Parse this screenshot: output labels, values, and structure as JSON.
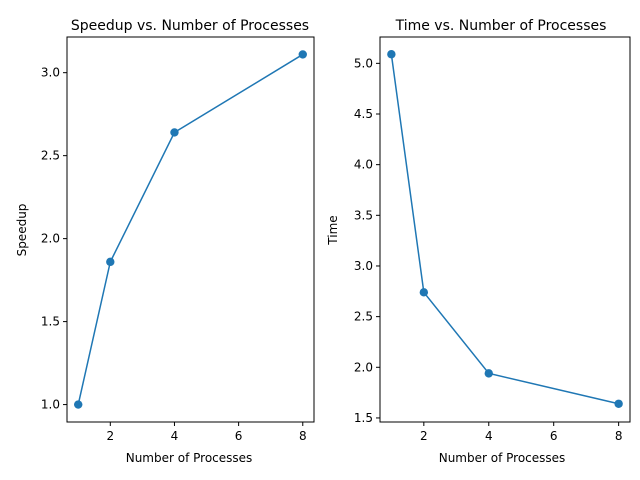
{
  "chart_data": [
    {
      "type": "line",
      "title": "Speedup vs. Number of Processes",
      "xlabel": "Number of Processes",
      "ylabel": "Speedup",
      "x": [
        1,
        2,
        4,
        8
      ],
      "series": [
        {
          "values": [
            1.0,
            1.86,
            2.64,
            3.11
          ],
          "color": "#1f77b4",
          "marker": "circle"
        }
      ],
      "xlim": [
        0.65,
        8.35
      ],
      "ylim": [
        0.895,
        3.215
      ],
      "xticks": [
        2,
        4,
        6,
        8
      ],
      "yticks": [
        1.0,
        1.5,
        2.0,
        2.5,
        3.0
      ],
      "xtick_labels": [
        "2",
        "4",
        "6",
        "8"
      ],
      "ytick_labels": [
        "1.0",
        "1.5",
        "2.0",
        "2.5",
        "3.0"
      ],
      "grid": false
    },
    {
      "type": "line",
      "title": "Time vs. Number of Processes",
      "xlabel": "Number of Processes",
      "ylabel": "Time",
      "x": [
        1,
        2,
        4,
        8
      ],
      "series": [
        {
          "values": [
            5.09,
            2.74,
            1.94,
            1.64
          ],
          "color": "#1f77b4",
          "marker": "circle"
        }
      ],
      "xlim": [
        0.65,
        8.35
      ],
      "ylim": [
        1.46,
        5.26
      ],
      "xticks": [
        2,
        4,
        6,
        8
      ],
      "yticks": [
        1.5,
        2.0,
        2.5,
        3.0,
        3.5,
        4.0,
        4.5,
        5.0
      ],
      "xtick_labels": [
        "2",
        "4",
        "6",
        "8"
      ],
      "ytick_labels": [
        "1.5",
        "2.0",
        "2.5",
        "3.0",
        "3.5",
        "4.0",
        "4.5",
        "5.0"
      ],
      "grid": false
    }
  ]
}
